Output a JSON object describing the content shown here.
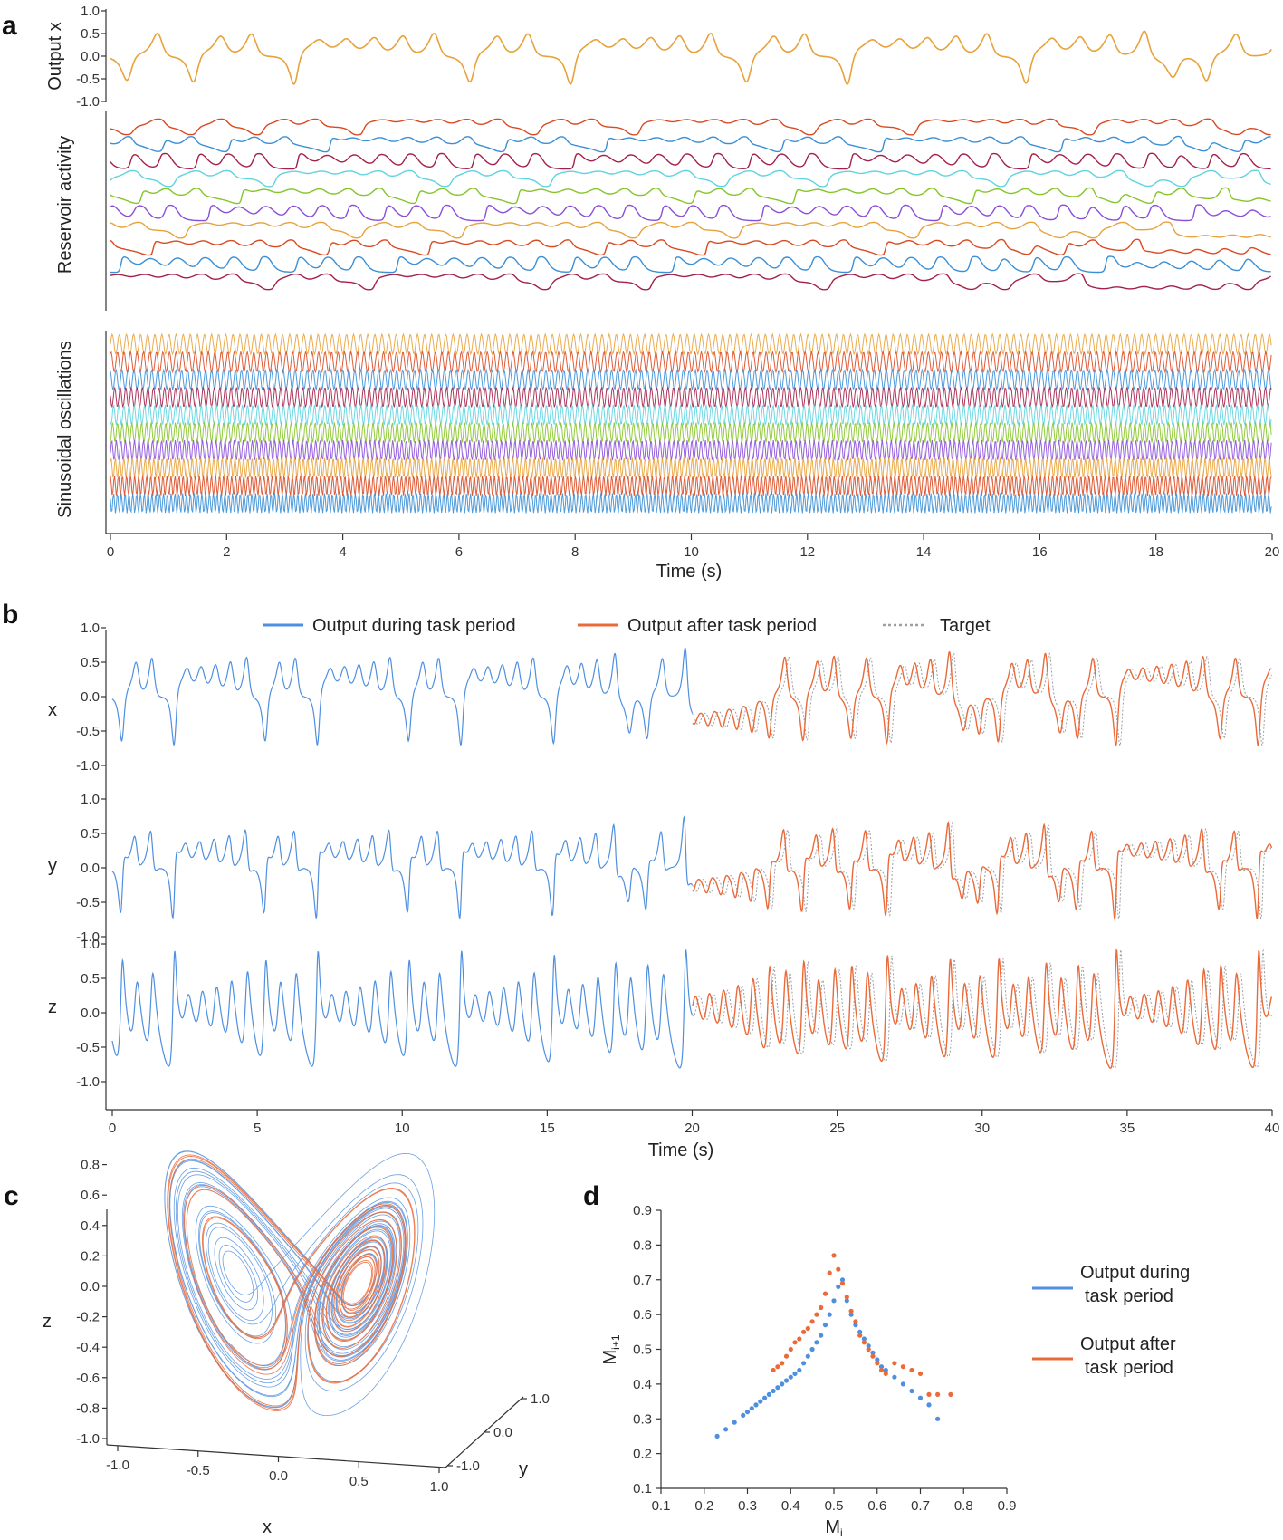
{
  "colors": {
    "orange": "#e8a23a",
    "red": "#d94a22",
    "blue": "#3a8fd6",
    "maroon": "#a3204a",
    "cyan": "#5fd3e0",
    "green": "#86c42a",
    "purple": "#8a4fd8",
    "task": "#4f8fe0",
    "after": "#ea6a3a",
    "target": "#9aa0a6"
  },
  "chart_data": [
    {
      "id": "a",
      "panel_letter": "a",
      "type": "line",
      "subplots": [
        {
          "ylabel": "Output x",
          "yticks": [
            "1.0",
            "0.5",
            "0.0",
            "-0.5",
            "-1.0"
          ],
          "ylim": [
            -1,
            1
          ],
          "series_colors": [
            "orange"
          ]
        },
        {
          "ylabel": "Reservoir activity",
          "yticks": [],
          "series_colors": [
            "red",
            "blue",
            "maroon",
            "cyan",
            "green",
            "purple",
            "orange",
            "red",
            "blue",
            "maroon"
          ]
        },
        {
          "ylabel": "Sinusoidal oscillations",
          "yticks": [],
          "series_colors": [
            "orange",
            "red",
            "blue",
            "maroon",
            "cyan",
            "green",
            "purple",
            "orange",
            "red",
            "blue"
          ]
        }
      ],
      "xlabel": "Time (s)",
      "xlim": [
        0,
        20
      ],
      "xticks": [
        "0",
        "2",
        "4",
        "6",
        "8",
        "10",
        "12",
        "14",
        "16",
        "18",
        "20"
      ]
    },
    {
      "id": "b",
      "panel_letter": "b",
      "type": "line",
      "legend": [
        "Output during task period",
        "Output after task period",
        "Target"
      ],
      "legend_position": "top",
      "subplots": [
        {
          "ylabel": "x",
          "yticks": [
            "1.0",
            "0.5",
            "0.0",
            "-0.5",
            "-1.0"
          ]
        },
        {
          "ylabel": "y",
          "yticks": [
            "1.0",
            "0.5",
            "0.0",
            "-0.5",
            "-1.0"
          ]
        },
        {
          "ylabel": "z",
          "yticks": [
            "1.0",
            "0.5",
            "0.0",
            "-0.5",
            "-1.0"
          ]
        }
      ],
      "task_period_end": 20,
      "xlabel": "Time (s)",
      "xlim": [
        0,
        40
      ],
      "xticks": [
        "0",
        "5",
        "10",
        "15",
        "20",
        "25",
        "30",
        "35",
        "40"
      ]
    },
    {
      "id": "c",
      "panel_letter": "c",
      "type": "line",
      "projection": "3d",
      "xlabel": "x",
      "ylabel": "y",
      "zlabel": "z",
      "xticks": [
        "-1.0",
        "-0.5",
        "0.0",
        "0.5",
        "1.0"
      ],
      "yticks": [
        "-1.0",
        "0.0",
        "1.0"
      ],
      "zticks": [
        "0.8",
        "0.6",
        "0.4",
        "0.2",
        "0.0",
        "-0.2",
        "-0.4",
        "-0.6",
        "-0.8",
        "-1.0"
      ],
      "series_colors": [
        "task",
        "after"
      ]
    },
    {
      "id": "d",
      "panel_letter": "d",
      "type": "scatter",
      "xlabel_main": "M",
      "xlabel_sub": "i",
      "ylabel_main": "M",
      "ylabel_sub": "i+1",
      "xlim": [
        0.1,
        0.9
      ],
      "ylim": [
        0.1,
        0.9
      ],
      "xticks": [
        "0.1",
        "0.2",
        "0.3",
        "0.4",
        "0.5",
        "0.6",
        "0.7",
        "0.8",
        "0.9"
      ],
      "yticks": [
        "0.1",
        "0.2",
        "0.3",
        "0.4",
        "0.5",
        "0.6",
        "0.7",
        "0.8",
        "0.9"
      ],
      "legend": [
        {
          "lines": [
            "Output during",
            "task period"
          ],
          "color": "task"
        },
        {
          "lines": [
            "Output after",
            "task period"
          ],
          "color": "after"
        }
      ],
      "legend_position": "right",
      "series": [
        {
          "name": "Output during task period",
          "color": "task",
          "points": [
            [
              0.23,
              0.25
            ],
            [
              0.25,
              0.27
            ],
            [
              0.27,
              0.29
            ],
            [
              0.29,
              0.31
            ],
            [
              0.3,
              0.32
            ],
            [
              0.31,
              0.33
            ],
            [
              0.32,
              0.34
            ],
            [
              0.33,
              0.35
            ],
            [
              0.34,
              0.36
            ],
            [
              0.35,
              0.37
            ],
            [
              0.36,
              0.38
            ],
            [
              0.37,
              0.39
            ],
            [
              0.38,
              0.4
            ],
            [
              0.39,
              0.41
            ],
            [
              0.4,
              0.42
            ],
            [
              0.41,
              0.43
            ],
            [
              0.42,
              0.44
            ],
            [
              0.43,
              0.46
            ],
            [
              0.44,
              0.48
            ],
            [
              0.45,
              0.5
            ],
            [
              0.46,
              0.52
            ],
            [
              0.47,
              0.54
            ],
            [
              0.48,
              0.57
            ],
            [
              0.49,
              0.6
            ],
            [
              0.5,
              0.64
            ],
            [
              0.51,
              0.68
            ],
            [
              0.52,
              0.7
            ],
            [
              0.53,
              0.64
            ],
            [
              0.54,
              0.6
            ],
            [
              0.55,
              0.57
            ],
            [
              0.56,
              0.55
            ],
            [
              0.57,
              0.53
            ],
            [
              0.58,
              0.51
            ],
            [
              0.59,
              0.49
            ],
            [
              0.6,
              0.47
            ],
            [
              0.61,
              0.45
            ],
            [
              0.62,
              0.44
            ],
            [
              0.64,
              0.42
            ],
            [
              0.66,
              0.4
            ],
            [
              0.68,
              0.38
            ],
            [
              0.7,
              0.36
            ],
            [
              0.72,
              0.34
            ],
            [
              0.74,
              0.3
            ]
          ]
        },
        {
          "name": "Output after task period",
          "color": "after",
          "points": [
            [
              0.36,
              0.44
            ],
            [
              0.37,
              0.45
            ],
            [
              0.38,
              0.46
            ],
            [
              0.39,
              0.48
            ],
            [
              0.4,
              0.5
            ],
            [
              0.41,
              0.52
            ],
            [
              0.42,
              0.53
            ],
            [
              0.43,
              0.55
            ],
            [
              0.44,
              0.56
            ],
            [
              0.45,
              0.58
            ],
            [
              0.46,
              0.6
            ],
            [
              0.47,
              0.62
            ],
            [
              0.48,
              0.66
            ],
            [
              0.49,
              0.72
            ],
            [
              0.5,
              0.77
            ],
            [
              0.51,
              0.73
            ],
            [
              0.52,
              0.69
            ],
            [
              0.53,
              0.65
            ],
            [
              0.54,
              0.61
            ],
            [
              0.55,
              0.58
            ],
            [
              0.56,
              0.54
            ],
            [
              0.57,
              0.52
            ],
            [
              0.58,
              0.5
            ],
            [
              0.59,
              0.48
            ],
            [
              0.6,
              0.46
            ],
            [
              0.61,
              0.44
            ],
            [
              0.62,
              0.43
            ],
            [
              0.64,
              0.46
            ],
            [
              0.66,
              0.45
            ],
            [
              0.68,
              0.44
            ],
            [
              0.7,
              0.43
            ],
            [
              0.72,
              0.37
            ],
            [
              0.74,
              0.37
            ],
            [
              0.77,
              0.37
            ]
          ]
        }
      ]
    }
  ]
}
